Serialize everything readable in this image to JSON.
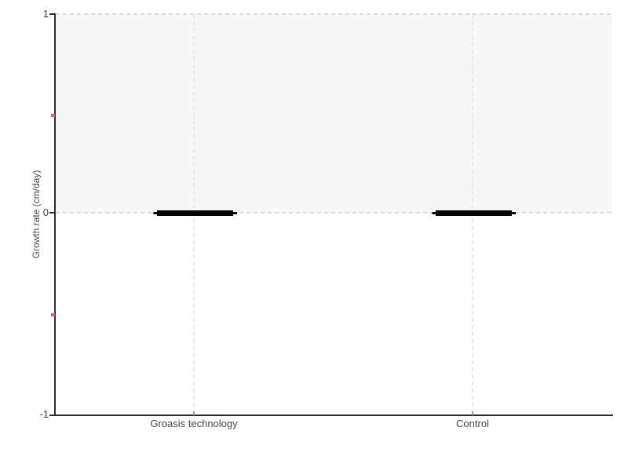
{
  "chart_data": {
    "type": "boxplot",
    "categories": [
      "Groasis technology",
      "Control"
    ],
    "series": [
      {
        "name": "Groasis technology",
        "median": 0,
        "q1": 0,
        "q3": 0,
        "whisker_low": 0,
        "whisker_high": 0,
        "mean": 0
      },
      {
        "name": "Control",
        "median": 0,
        "q1": 0,
        "q3": 0,
        "whisker_low": 0,
        "whisker_high": 0,
        "mean": 0
      }
    ],
    "values": [
      0,
      0
    ],
    "title": "",
    "xlabel": "",
    "ylabel": "Growth rate (cm/day)",
    "ylim": [
      -1,
      1
    ],
    "ytick_labels": [
      "1",
      "0",
      "-1"
    ],
    "minor_yticks": [
      0.5,
      -0.5
    ],
    "grid": "dashed horizontal at 0 and 1, dashed vertical at each category",
    "legend": "none",
    "shaded_band_y": [
      0,
      1
    ]
  },
  "colors": {
    "axis": "#2f2f2f",
    "band": "#f7f7f7",
    "gridline": "#dcdcdc",
    "minor_tick": "#e06060",
    "x_tick": "#9a9a9a",
    "box": "#000000",
    "mean_mark": "#3f8f3f",
    "label_text": "#4a4a4a"
  }
}
